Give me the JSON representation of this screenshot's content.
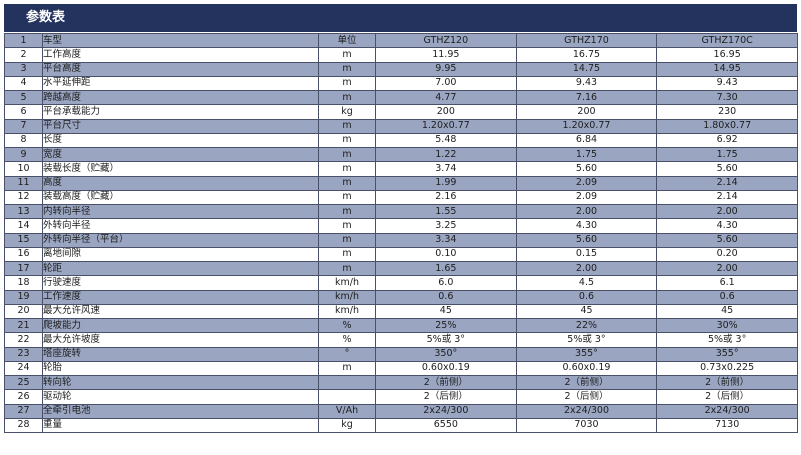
{
  "title": "参数表",
  "header": [
    "1",
    "车型",
    "单位",
    "GTHZ120",
    "GTHZ170",
    "GTHZ170C"
  ],
  "rows": [
    [
      "2",
      "工作高度",
      "m",
      "11.95",
      "16.75",
      "16.95"
    ],
    [
      "3",
      "平台高度",
      "m",
      "9.95",
      "14.75",
      "14.95"
    ],
    [
      "4",
      "水平延伸距",
      "m",
      "7.00",
      "9.43",
      "9.43"
    ],
    [
      "5",
      "跨越高度",
      "m",
      "4.77",
      "7.16",
      "7.30"
    ],
    [
      "6",
      "平台承载能力",
      "kg",
      "200",
      "200",
      "230"
    ],
    [
      "7",
      "平台尺寸",
      "m",
      "1.20x0.77",
      "1.20x0.77",
      "1.80x0.77"
    ],
    [
      "8",
      "长度",
      "m",
      "5.48",
      "6.84",
      "6.92"
    ],
    [
      "9",
      "宽度",
      "m",
      "1.22",
      "1.75",
      "1.75"
    ],
    [
      "10",
      "装载长度（贮藏）",
      "m",
      "3.74",
      "5.60",
      "5.60"
    ],
    [
      "11",
      "高度",
      "m",
      "1.99",
      "2.09",
      "2.14"
    ],
    [
      "12",
      "装载高度（贮藏）",
      "m",
      "2.16",
      "2.09",
      "2.14"
    ],
    [
      "13",
      "内转向半径",
      "m",
      "1.55",
      "2.00",
      "2.00"
    ],
    [
      "14",
      "外转向半径",
      "m",
      "3.25",
      "4.30",
      "4.30"
    ],
    [
      "15",
      "外转向半径（平台）",
      "m",
      "3.34",
      "5.60",
      "5.60"
    ],
    [
      "16",
      "离地间隙",
      "m",
      "0.10",
      "0.15",
      "0.20"
    ],
    [
      "17",
      "轮距",
      "m",
      "1.65",
      "2.00",
      "2.00"
    ],
    [
      "18",
      "行驶速度",
      "km/h",
      "6.0",
      "4.5",
      "6.1"
    ],
    [
      "19",
      "工作速度",
      "km/h",
      "0.6",
      "0.6",
      "0.6"
    ],
    [
      "20",
      "最大允许风速",
      "km/h",
      "45",
      "45",
      "45"
    ],
    [
      "21",
      "爬坡能力",
      "%",
      "25%",
      "22%",
      "30%"
    ],
    [
      "22",
      "最大允许坡度",
      "%",
      "5%或 3°",
      "5%或 3°",
      "5%或 3°"
    ],
    [
      "23",
      "塔座旋转",
      "°",
      "350°",
      "355°",
      "355°"
    ],
    [
      "24",
      "轮胎",
      "m",
      "0.60x0.19",
      "0.60x0.19",
      "0.73x0.225"
    ],
    [
      "25",
      "转向轮",
      "",
      "2（前侧）",
      "2（前侧）",
      "2（前侧）"
    ],
    [
      "26",
      "驱动轮",
      "",
      "2（后侧）",
      "2（后侧）",
      "2（后侧）"
    ],
    [
      "27",
      "全牵引电池",
      "V/Ah",
      "2x24/300",
      "2x24/300",
      "2x24/300"
    ],
    [
      "28",
      "重量",
      "kg",
      "6550",
      "7030",
      "7130"
    ]
  ]
}
